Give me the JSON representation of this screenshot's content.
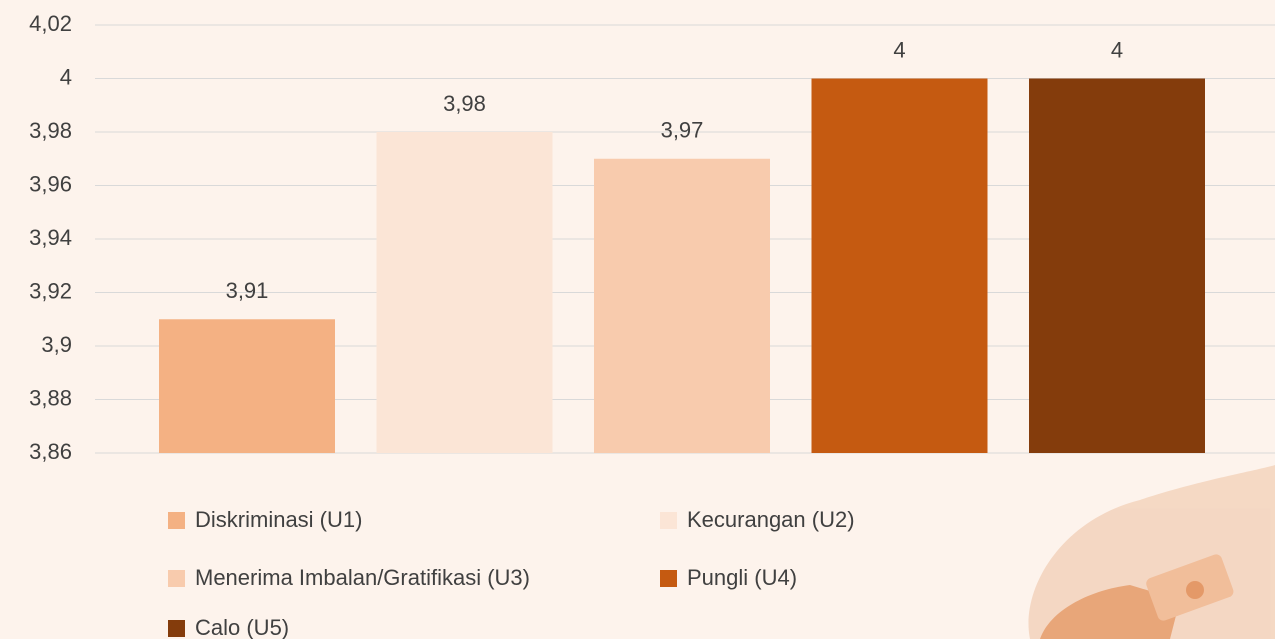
{
  "chart_data": {
    "type": "bar",
    "categories": [
      null
    ],
    "series": [
      {
        "name": "Diskriminasi (U1)",
        "color": "#f4b183",
        "values": [
          3.91
        ],
        "value_labels": [
          "3,91"
        ]
      },
      {
        "name": "Kecurangan (U2)",
        "color": "#fbe5d6",
        "values": [
          3.98
        ],
        "value_labels": [
          "3,98"
        ]
      },
      {
        "name": "Menerima Imbalan/Gratifikasi (U3)",
        "color": "#f8cbad",
        "values": [
          3.97
        ],
        "value_labels": [
          "3,97"
        ]
      },
      {
        "name": "Pungli (U4)",
        "color": "#c55a11",
        "values": [
          4
        ],
        "value_labels": [
          "4"
        ]
      },
      {
        "name": "Calo (U5)",
        "color": "#843c0c",
        "values": [
          4
        ],
        "value_labels": [
          "4"
        ]
      }
    ],
    "ylim": [
      3.86,
      4.02
    ],
    "yticks": [
      {
        "value": 3.86,
        "label": "3,86"
      },
      {
        "value": 3.88,
        "label": "3,88"
      },
      {
        "value": 3.9,
        "label": "3,9"
      },
      {
        "value": 3.92,
        "label": "3,92"
      },
      {
        "value": 3.94,
        "label": "3,94"
      },
      {
        "value": 3.96,
        "label": "3,96"
      },
      {
        "value": 3.98,
        "label": "3,98"
      },
      4,
      {
        "value": 4.02,
        "label": "4,02"
      }
    ],
    "grid": true
  }
}
